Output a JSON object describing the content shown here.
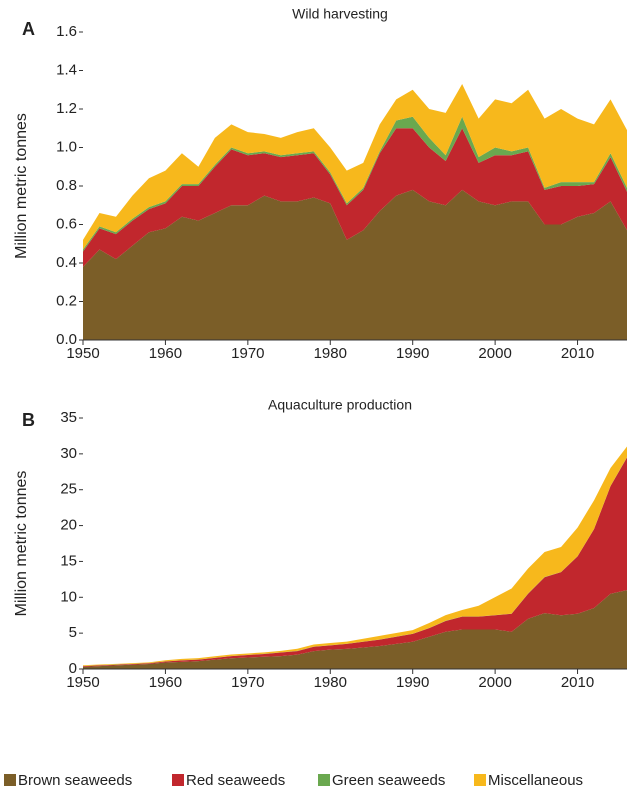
{
  "chart_data": [
    {
      "type": "stacked-area",
      "panel_label": "A",
      "title": "Wild harvesting",
      "y_label": "Million metric tonnes",
      "x": [
        1950,
        1952,
        1954,
        1956,
        1958,
        1960,
        1962,
        1964,
        1966,
        1968,
        1970,
        1972,
        1974,
        1976,
        1978,
        1980,
        1982,
        1984,
        1986,
        1988,
        1990,
        1992,
        1994,
        1996,
        1998,
        2000,
        2002,
        2004,
        2006,
        2008,
        2010,
        2012,
        2014,
        2016
      ],
      "series": [
        {
          "name": "Brown seaweeds",
          "color": "#7b5e28",
          "values": [
            0.38,
            0.47,
            0.42,
            0.49,
            0.56,
            0.58,
            0.64,
            0.62,
            0.66,
            0.7,
            0.7,
            0.75,
            0.72,
            0.72,
            0.74,
            0.71,
            0.52,
            0.57,
            0.67,
            0.75,
            0.78,
            0.72,
            0.7,
            0.78,
            0.72,
            0.7,
            0.72,
            0.72,
            0.6,
            0.6,
            0.64,
            0.66,
            0.72,
            0.57
          ]
        },
        {
          "name": "Red seaweeds",
          "color": "#c1272d",
          "values": [
            0.08,
            0.11,
            0.13,
            0.13,
            0.12,
            0.13,
            0.16,
            0.18,
            0.24,
            0.29,
            0.26,
            0.22,
            0.23,
            0.24,
            0.23,
            0.15,
            0.18,
            0.21,
            0.3,
            0.35,
            0.32,
            0.28,
            0.23,
            0.32,
            0.2,
            0.26,
            0.24,
            0.26,
            0.18,
            0.2,
            0.16,
            0.15,
            0.23,
            0.2
          ]
        },
        {
          "name": "Green seaweeds",
          "color": "#6aa84f",
          "values": [
            0.01,
            0.01,
            0.01,
            0.01,
            0.01,
            0.01,
            0.01,
            0.01,
            0.01,
            0.01,
            0.01,
            0.01,
            0.01,
            0.01,
            0.01,
            0.01,
            0.01,
            0.01,
            0.01,
            0.04,
            0.06,
            0.05,
            0.03,
            0.06,
            0.03,
            0.04,
            0.02,
            0.02,
            0.01,
            0.02,
            0.02,
            0.01,
            0.02,
            0.02
          ]
        },
        {
          "name": "Miscellaneous",
          "color": "#f7b81c",
          "values": [
            0.05,
            0.07,
            0.08,
            0.12,
            0.15,
            0.16,
            0.16,
            0.09,
            0.14,
            0.12,
            0.11,
            0.09,
            0.09,
            0.11,
            0.12,
            0.13,
            0.17,
            0.13,
            0.14,
            0.11,
            0.14,
            0.15,
            0.22,
            0.17,
            0.2,
            0.25,
            0.25,
            0.3,
            0.36,
            0.38,
            0.33,
            0.3,
            0.28,
            0.3
          ]
        }
      ],
      "xlim": [
        1950,
        2016
      ],
      "xticks": [
        1950,
        1960,
        1970,
        1980,
        1990,
        2000,
        2010
      ],
      "ylim": [
        0,
        1.6
      ],
      "yticks": [
        {
          "value": 0,
          "label": "0.0"
        },
        0.2,
        0.4,
        0.6,
        0.8,
        {
          "value": 1,
          "label": "1.0"
        },
        1.2,
        1.4,
        1.6
      ]
    },
    {
      "type": "stacked-area",
      "panel_label": "B",
      "title": "Aquaculture production",
      "y_label": "Million metric tonnes",
      "x": [
        1950,
        1952,
        1954,
        1956,
        1958,
        1960,
        1962,
        1964,
        1966,
        1968,
        1970,
        1972,
        1974,
        1976,
        1978,
        1980,
        1982,
        1984,
        1986,
        1988,
        1990,
        1992,
        1994,
        1996,
        1998,
        2000,
        2002,
        2004,
        2006,
        2008,
        2010,
        2012,
        2014,
        2016
      ],
      "series": [
        {
          "name": "Brown seaweeds",
          "color": "#7b5e28",
          "values": [
            0.3,
            0.4,
            0.5,
            0.6,
            0.7,
            0.9,
            1.0,
            1.1,
            1.3,
            1.5,
            1.6,
            1.7,
            1.8,
            2.0,
            2.5,
            2.7,
            2.8,
            3.0,
            3.2,
            3.5,
            3.8,
            4.5,
            5.2,
            5.5,
            5.5,
            5.5,
            5.2,
            7.0,
            7.8,
            7.5,
            7.7,
            8.5,
            10.5,
            11.0
          ]
        },
        {
          "name": "Red seaweeds",
          "color": "#c1272d",
          "values": [
            0.1,
            0.1,
            0.1,
            0.1,
            0.1,
            0.15,
            0.2,
            0.2,
            0.25,
            0.3,
            0.35,
            0.4,
            0.5,
            0.5,
            0.6,
            0.6,
            0.7,
            0.8,
            0.9,
            1.0,
            1.1,
            1.2,
            1.5,
            1.8,
            1.8,
            2.0,
            2.5,
            3.5,
            5.0,
            6.0,
            8.0,
            11.0,
            15.0,
            18.5
          ]
        },
        {
          "name": "Green seaweeds",
          "color": "#6aa84f",
          "values": [
            0.02,
            0.02,
            0.02,
            0.02,
            0.02,
            0.02,
            0.02,
            0.02,
            0.02,
            0.02,
            0.02,
            0.02,
            0.02,
            0.02,
            0.02,
            0.02,
            0.02,
            0.02,
            0.02,
            0.02,
            0.02,
            0.02,
            0.02,
            0.02,
            0.02,
            0.02,
            0.02,
            0.02,
            0.02,
            0.02,
            0.02,
            0.02,
            0.02,
            0.02
          ]
        },
        {
          "name": "Miscellaneous",
          "color": "#f7b81c",
          "values": [
            0.1,
            0.1,
            0.1,
            0.1,
            0.1,
            0.15,
            0.2,
            0.2,
            0.2,
            0.2,
            0.2,
            0.2,
            0.2,
            0.3,
            0.3,
            0.3,
            0.3,
            0.4,
            0.5,
            0.5,
            0.5,
            0.7,
            0.8,
            0.9,
            1.5,
            2.5,
            3.5,
            3.5,
            3.5,
            3.5,
            4.0,
            4.0,
            2.5,
            1.5
          ]
        }
      ],
      "xlim": [
        1950,
        2016
      ],
      "xticks": [
        1950,
        1960,
        1970,
        1980,
        1990,
        2000,
        2010
      ],
      "ylim": [
        0,
        35
      ],
      "yticks": [
        0,
        5,
        10,
        15,
        20,
        25,
        30,
        35
      ]
    }
  ]
}
